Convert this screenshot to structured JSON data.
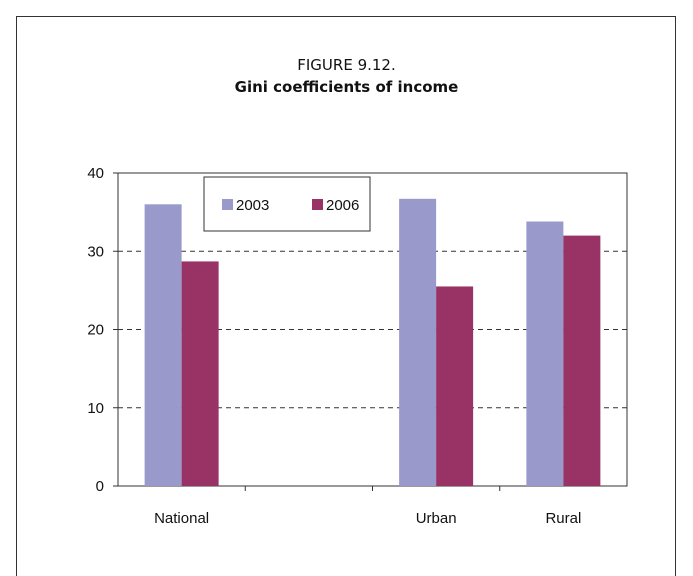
{
  "figure": {
    "number": "FIGURE 9.12.",
    "title": "Gini coefficients of income"
  },
  "chart_data": {
    "type": "bar",
    "categories": [
      "National",
      "",
      "Urban",
      "Rural"
    ],
    "series": [
      {
        "name": "2003",
        "color": "#9999cc",
        "values": [
          36.0,
          null,
          36.7,
          33.8
        ]
      },
      {
        "name": "2006",
        "color": "#993366",
        "values": [
          28.7,
          null,
          25.5,
          32.0
        ]
      }
    ],
    "ylim": [
      0,
      40
    ],
    "yticks": [
      0,
      10,
      20,
      30,
      40
    ],
    "grid": "dashed horizontal",
    "legend_position": "top-center"
  }
}
